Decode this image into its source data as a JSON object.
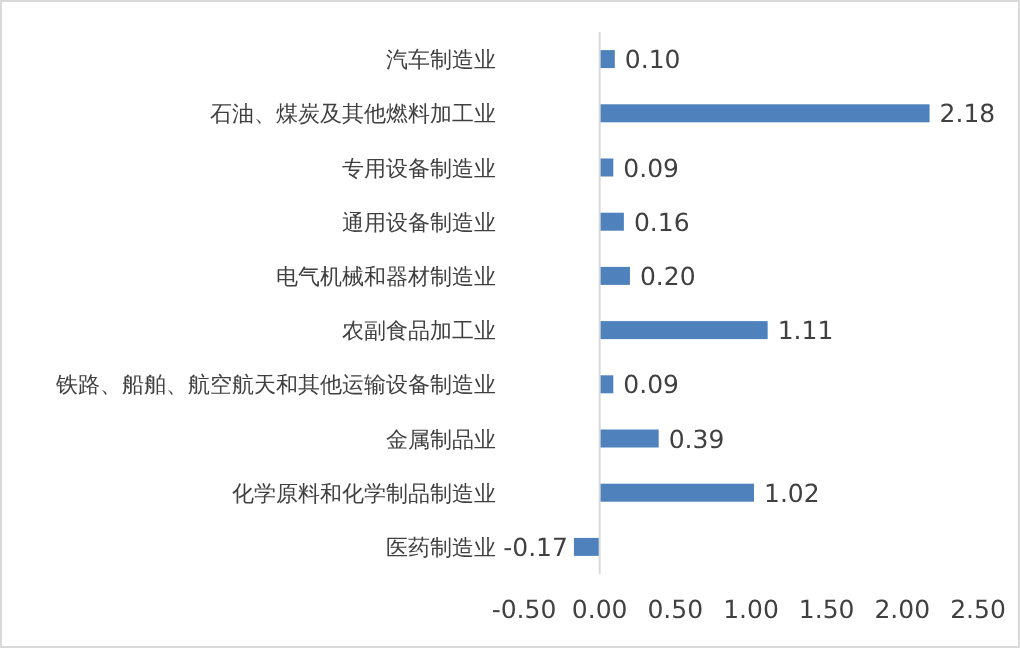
{
  "chart_data": {
    "type": "bar",
    "orientation": "horizontal",
    "categories": [
      "汽车制造业",
      "石油、煤炭及其他燃料加工业",
      "专用设备制造业",
      "通用设备制造业",
      "电气机械和器材制造业",
      "农副食品加工业",
      "铁路、船舶、航空航天和其他运输设备制造业",
      "金属制品业",
      "化学原料和化学制品制造业",
      "医药制造业"
    ],
    "values": [
      0.1,
      2.18,
      0.09,
      0.16,
      0.2,
      1.11,
      0.09,
      0.39,
      1.02,
      -0.17
    ],
    "value_labels": [
      "0.10",
      "2.18",
      "0.09",
      "0.16",
      "0.20",
      "1.11",
      "0.09",
      "0.39",
      "1.02",
      "-0.17"
    ],
    "color": "#4f81bd",
    "xlim": [
      -0.5,
      2.5
    ],
    "xticks": [
      {
        "value": -0.5,
        "label": "-0.50"
      },
      {
        "value": 0,
        "label": "0.00"
      },
      {
        "value": 0.5,
        "label": "0.50"
      },
      {
        "value": 1,
        "label": "1.00"
      },
      {
        "value": 1.5,
        "label": "1.50"
      },
      {
        "value": 2,
        "label": "2.00"
      },
      {
        "value": 2.5,
        "label": "2.50"
      }
    ]
  }
}
